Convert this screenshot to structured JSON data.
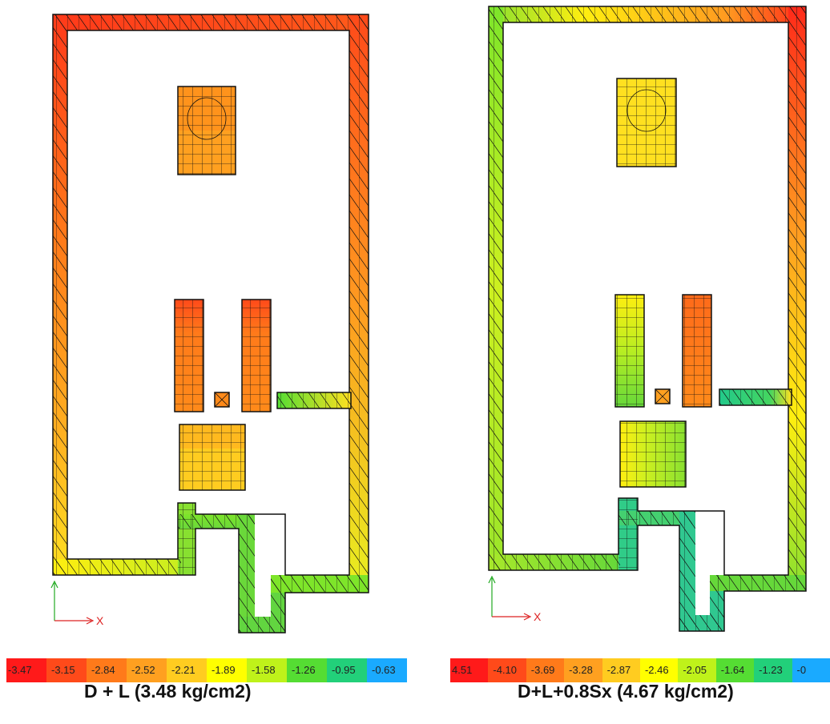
{
  "panels": [
    {
      "caption": "D + L (3.48 kg/cm2)",
      "axis_x_label": "X",
      "legend": {
        "labels": [
          "-3.47",
          "-3.15",
          "-2.84",
          "-2.52",
          "-2.21",
          "-1.89",
          "-1.58",
          "-1.26",
          "-0.95",
          "-0.63"
        ],
        "colors": [
          "#ff1a1a",
          "#ff4a1a",
          "#ff7a1a",
          "#ffa020",
          "#ffcc20",
          "#ffff00",
          "#bff21a",
          "#55dd33",
          "#22d07a",
          "#1aaaff"
        ]
      }
    },
    {
      "caption": "D+L+0.8Sx (4.67 kg/cm2)",
      "axis_x_label": "X",
      "legend": {
        "labels": [
          "4.51",
          "-4.10",
          "-3.69",
          "-3.28",
          "-2.87",
          "-2.46",
          "-2.05",
          "-1.64",
          "-1.23",
          "-0"
        ],
        "colors": [
          "#ff1a1a",
          "#ff4a1a",
          "#ff7a1a",
          "#ffa020",
          "#ffcc20",
          "#ffff00",
          "#bff21a",
          "#55dd33",
          "#22d07a",
          "#1aaaff"
        ]
      }
    }
  ]
}
